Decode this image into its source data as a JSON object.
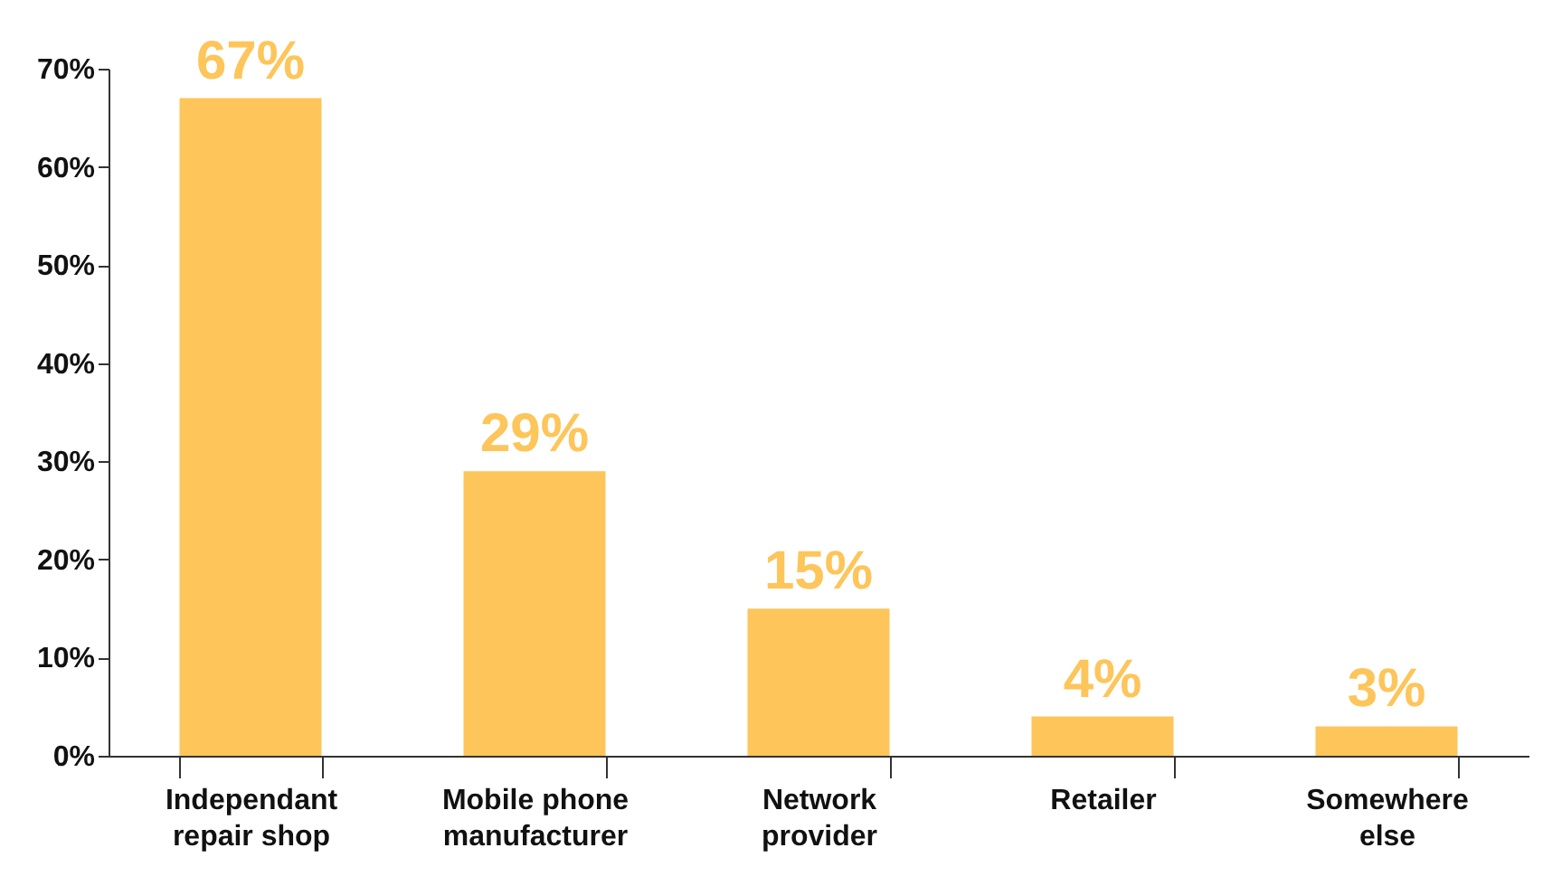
{
  "chart_data": {
    "type": "bar",
    "categories": [
      "Independant repair shop",
      "Mobile phone manufacturer",
      "Network provider",
      "Retailer",
      "Somewhere else"
    ],
    "values": [
      67,
      29,
      15,
      4,
      3
    ],
    "color": "#fdc55a",
    "ylim": [
      0,
      70
    ],
    "yticks": [
      {
        "value": 0,
        "label": "0%"
      },
      {
        "value": 10,
        "label": "10%"
      },
      {
        "value": 20,
        "label": "20%"
      },
      {
        "value": 30,
        "label": "30%"
      },
      {
        "value": 40,
        "label": "40%"
      },
      {
        "value": 50,
        "label": "50%"
      },
      {
        "value": 60,
        "label": "60%"
      },
      {
        "value": 70,
        "label": "70%"
      }
    ],
    "value_labels": [
      "67%",
      "29%",
      "15%",
      "4%",
      "3%"
    ],
    "grid": false
  }
}
